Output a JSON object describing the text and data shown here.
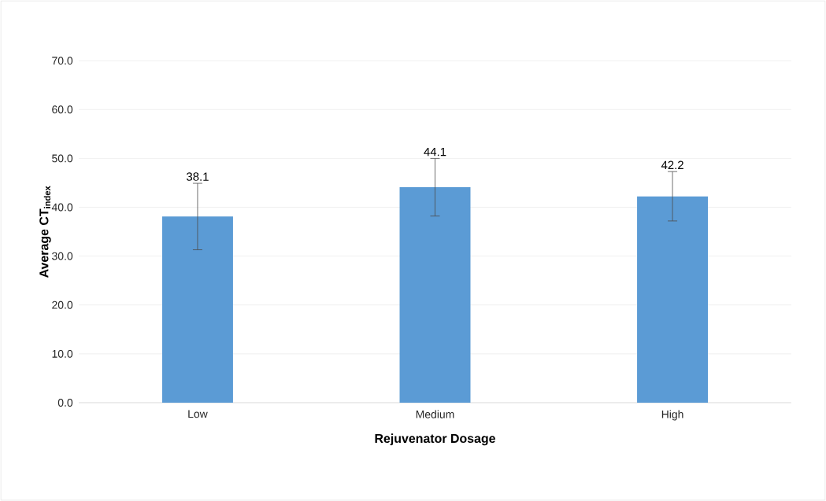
{
  "chart_data": {
    "type": "bar",
    "xlabel": "Rejuvenator Dosage",
    "ylabel": "Average CT$_{index}$",
    "categories": [
      "Low",
      "Medium",
      "High"
    ],
    "values": [
      38.1,
      44.1,
      42.2
    ],
    "errors": [
      [
        31.3,
        44.9
      ],
      [
        38.2,
        50.0
      ],
      [
        37.2,
        47.3
      ]
    ],
    "value_labels": [
      "38.1",
      "44.1",
      "42.2"
    ],
    "color": "#5b9bd5",
    "ylim": [
      0,
      70
    ],
    "yticks": [
      {
        "value": 0,
        "label": "0.0"
      },
      {
        "value": 10,
        "label": "10.0"
      },
      {
        "value": 20,
        "label": "20.0"
      },
      {
        "value": 30,
        "label": "30.0"
      },
      {
        "value": 40,
        "label": "40.0"
      },
      {
        "value": 50,
        "label": "50.0"
      },
      {
        "value": 60,
        "label": "60.0"
      },
      {
        "value": 70,
        "label": "70.0"
      }
    ],
    "grid": "y"
  }
}
